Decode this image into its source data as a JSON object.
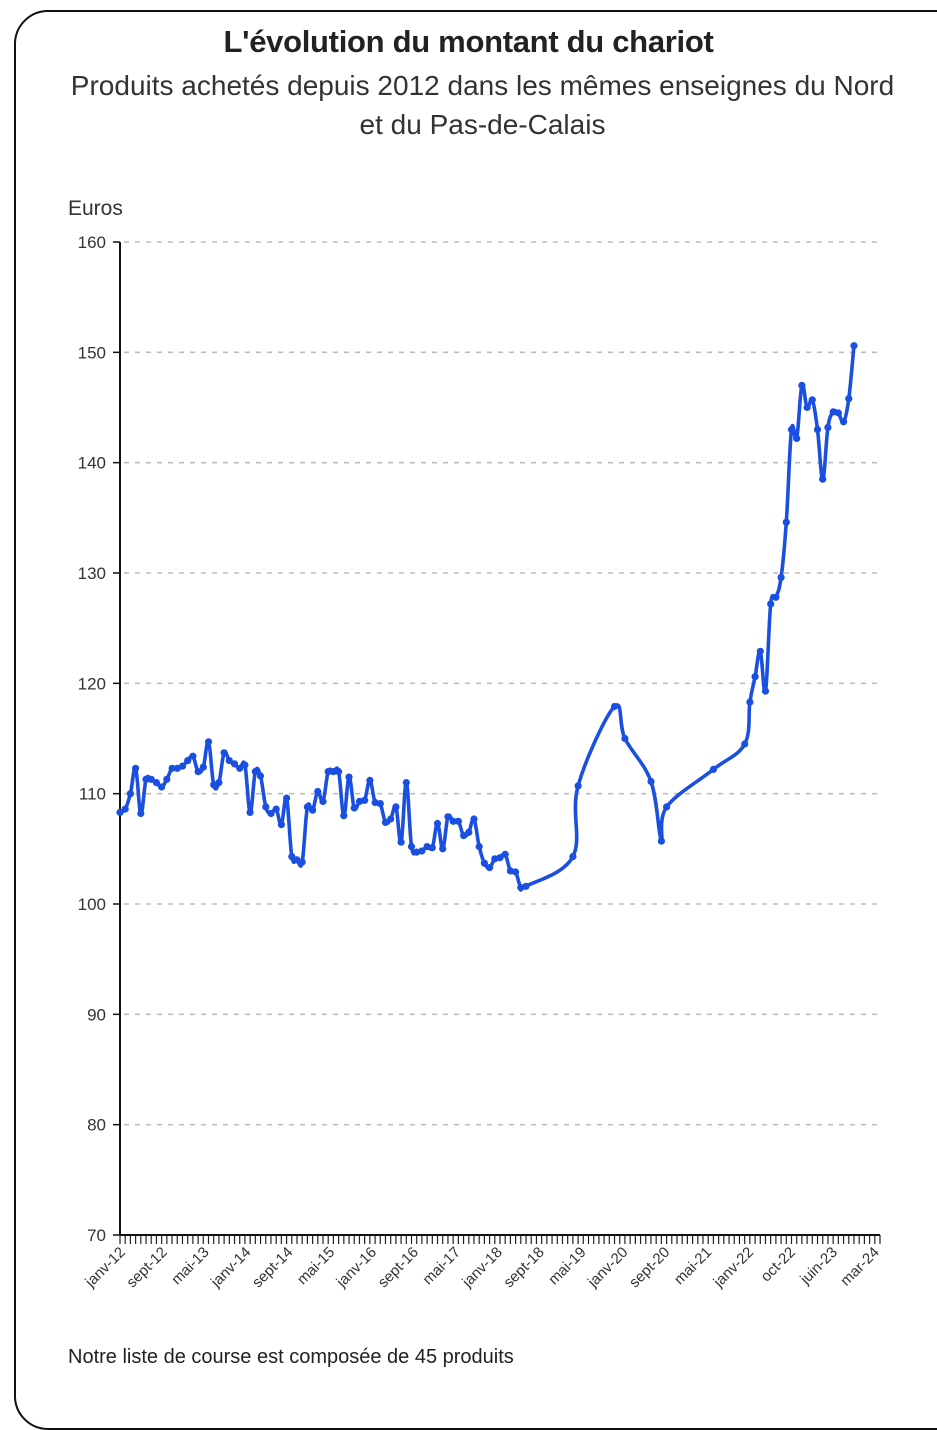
{
  "chart_data": {
    "type": "line",
    "title": "L'évolution du montant du chariot",
    "subtitle": "Produits achetés depuis 2012 dans les mêmes enseignes du Nord et du Pas-de-Calais",
    "ylabel": "Euros",
    "xlabel": "",
    "ylim": [
      70,
      160
    ],
    "yticks": [
      70,
      80,
      90,
      100,
      110,
      120,
      130,
      140,
      150,
      160
    ],
    "grid": "horizontal-dashed",
    "x_tick_labels": [
      "janv-12",
      "sept-12",
      "mai-13",
      "janv-14",
      "sept-14",
      "mai-15",
      "janv-16",
      "sept-16",
      "mai-17",
      "janv-18",
      "sept-18",
      "mai-19",
      "janv-20",
      "sept-20",
      "mai-21",
      "janv-22",
      "oct-22",
      "juin-23",
      "mar-24"
    ],
    "x_start": "2012-01",
    "x_end": "2024-03",
    "color": "#1a4fe0",
    "series": [
      {
        "name": "",
        "points": [
          [
            "2012-01",
            108.3
          ],
          [
            "2012-02",
            108.6
          ],
          [
            "2012-03",
            110.0
          ],
          [
            "2012-04",
            112.3
          ],
          [
            "2012-05",
            108.2
          ],
          [
            "2012-06",
            111.3
          ],
          [
            "2012-07",
            111.3
          ],
          [
            "2012-08",
            111.0
          ],
          [
            "2012-09",
            110.6
          ],
          [
            "2012-10",
            111.3
          ],
          [
            "2012-11",
            112.3
          ],
          [
            "2012-12",
            112.3
          ],
          [
            "2013-01",
            112.5
          ],
          [
            "2013-02",
            113.0
          ],
          [
            "2013-03",
            113.4
          ],
          [
            "2013-04",
            112.0
          ],
          [
            "2013-05",
            112.4
          ],
          [
            "2013-06",
            114.7
          ],
          [
            "2013-07",
            110.8
          ],
          [
            "2013-08",
            111.0
          ],
          [
            "2013-09",
            113.7
          ],
          [
            "2013-10",
            113.0
          ],
          [
            "2013-11",
            112.7
          ],
          [
            "2013-12",
            112.3
          ],
          [
            "2014-01",
            112.6
          ],
          [
            "2014-02",
            108.3
          ],
          [
            "2014-03",
            112.0
          ],
          [
            "2014-04",
            111.6
          ],
          [
            "2014-05",
            108.8
          ],
          [
            "2014-06",
            108.2
          ],
          [
            "2014-07",
            108.6
          ],
          [
            "2014-08",
            107.2
          ],
          [
            "2014-09",
            109.6
          ],
          [
            "2014-10",
            104.3
          ],
          [
            "2014-11",
            104.0
          ],
          [
            "2014-12",
            103.8
          ],
          [
            "2015-01",
            108.8
          ],
          [
            "2015-02",
            108.5
          ],
          [
            "2015-03",
            110.2
          ],
          [
            "2015-04",
            109.3
          ],
          [
            "2015-05",
            112.0
          ],
          [
            "2015-06",
            112.0
          ],
          [
            "2015-07",
            112.0
          ],
          [
            "2015-08",
            108.0
          ],
          [
            "2015-09",
            111.5
          ],
          [
            "2015-10",
            108.7
          ],
          [
            "2015-11",
            109.3
          ],
          [
            "2015-12",
            109.4
          ],
          [
            "2016-01",
            111.2
          ],
          [
            "2016-02",
            109.2
          ],
          [
            "2016-03",
            109.1
          ],
          [
            "2016-04",
            107.4
          ],
          [
            "2016-05",
            107.7
          ],
          [
            "2016-06",
            108.8
          ],
          [
            "2016-07",
            105.6
          ],
          [
            "2016-08",
            111.0
          ],
          [
            "2016-09",
            105.2
          ],
          [
            "2016-10",
            104.7
          ],
          [
            "2016-11",
            104.8
          ],
          [
            "2016-12",
            105.2
          ],
          [
            "2017-01",
            105.1
          ],
          [
            "2017-02",
            107.3
          ],
          [
            "2017-03",
            105.0
          ],
          [
            "2017-04",
            107.9
          ],
          [
            "2017-05",
            107.5
          ],
          [
            "2017-06",
            107.5
          ],
          [
            "2017-07",
            106.2
          ],
          [
            "2017-08",
            106.5
          ],
          [
            "2017-09",
            107.7
          ],
          [
            "2017-10",
            105.2
          ],
          [
            "2017-11",
            103.7
          ],
          [
            "2017-12",
            103.3
          ],
          [
            "2018-01",
            104.1
          ],
          [
            "2018-02",
            104.2
          ],
          [
            "2018-03",
            104.5
          ],
          [
            "2018-04",
            103.0
          ],
          [
            "2018-05",
            102.9
          ],
          [
            "2018-06",
            101.5
          ],
          [
            "2018-07",
            101.6
          ],
          [
            "2019-04",
            104.3
          ],
          [
            "2019-05",
            110.7
          ],
          [
            "2019-12",
            117.9
          ],
          [
            "2020-02",
            115.0
          ],
          [
            "2020-07",
            111.1
          ],
          [
            "2020-09",
            105.7
          ],
          [
            "2020-10",
            108.8
          ],
          [
            "2021-07",
            112.2
          ],
          [
            "2022-01",
            114.5
          ],
          [
            "2022-02",
            118.3
          ],
          [
            "2022-03",
            120.6
          ],
          [
            "2022-04",
            122.9
          ],
          [
            "2022-05",
            119.3
          ],
          [
            "2022-06",
            127.2
          ],
          [
            "2022-07",
            127.8
          ],
          [
            "2022-08",
            129.6
          ],
          [
            "2022-09",
            134.6
          ],
          [
            "2022-10",
            143.0
          ],
          [
            "2022-11",
            142.2
          ],
          [
            "2022-12",
            147.0
          ],
          [
            "2023-01",
            145.0
          ],
          [
            "2023-02",
            145.7
          ],
          [
            "2023-03",
            143.0
          ],
          [
            "2023-04",
            138.5
          ],
          [
            "2023-05",
            143.2
          ],
          [
            "2023-06",
            144.6
          ],
          [
            "2023-07",
            144.5
          ],
          [
            "2023-08",
            143.7
          ],
          [
            "2023-09",
            145.8
          ],
          [
            "2023-10",
            150.6
          ]
        ]
      }
    ]
  },
  "footnote": "Notre liste de course est composée de 45 produits"
}
